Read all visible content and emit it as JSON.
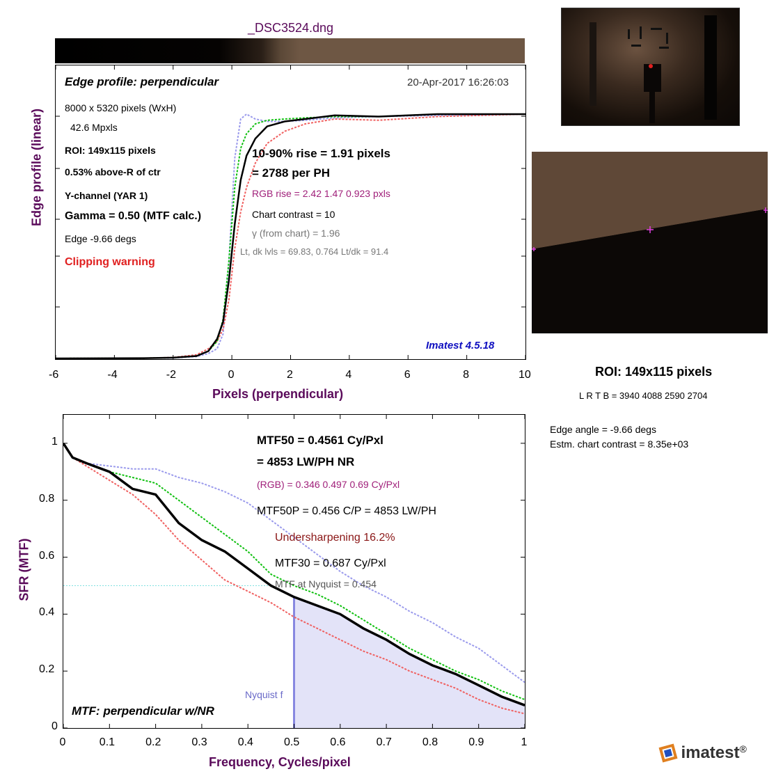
{
  "title": "_DSC3524.dng",
  "edge_panel": {
    "heading": "Edge profile: perpendicular",
    "timestamp": "20-Apr-2017 16:26:03",
    "dims": "8000 x 5320 pixels (WxH)",
    "mpxls": "42.6 Mpxls",
    "roi": "ROI:  149x115 pixels",
    "above": "0.53% above-R of ctr",
    "channel": "Y-channel  (YAR 1)",
    "gamma": "Gamma = 0.50 (MTF calc.)",
    "edge": "Edge  -9.66 degs",
    "clipping": "Clipping warning",
    "rise": "10-90% rise = 1.91 pixels",
    "per_ph": "=   2788 per PH",
    "rgb_rise": "RGB rise =   2.42    1.47   0.923 pxls",
    "contrast": "Chart contrast = 10",
    "gamma_chart": "γ (from chart) =  1.96",
    "levels": "Lt, dk lvls =  69.83,   0.764   Lt/dk =   91.4",
    "version": "Imatest 4.5.18",
    "ylabel": "Edge profile (linear)",
    "xlabel": "Pixels (perpendicular)",
    "xticks": [
      "-6",
      "-4",
      "-2",
      "0",
      "2",
      "4",
      "6",
      "8",
      "10"
    ]
  },
  "mtf_panel": {
    "mtf50": "MTF50 = 0.4561 Cy/Pxl",
    "lwph": "= 4853 LW/PH  NR",
    "rgb": "(RGB) = 0.346  0.497  0.69 Cy/Pxl",
    "mtf50p": "MTF50P = 0.456 C/P = 4853 LW/PH",
    "under": "Undersharpening 16.2%",
    "mtf30": "MTF30 = 0.687 Cy/Pxl",
    "nyq_mtf": "MTF at Nyquist = 0.454",
    "nyquist_label": "Nyquist f",
    "footer": "MTF: perpendicular w/NR",
    "ylabel": "SFR (MTF)",
    "xlabel": "Frequency, Cycles/pixel",
    "xticks": [
      "0",
      "0.1",
      "0.2",
      "0.3",
      "0.4",
      "0.5",
      "0.6",
      "0.7",
      "0.8",
      "0.9",
      "1"
    ],
    "yticks": [
      "0",
      "0.2",
      "0.4",
      "0.6",
      "0.8",
      "1"
    ]
  },
  "right_info": {
    "roi_title": "ROI:  149x115 pixels",
    "lrtb": "L R  T B = 3940 4088  2590 2704",
    "angle": "Edge angle = -9.66 degs",
    "estm": "Estm. chart contrast = 8.35e+03"
  },
  "logo": {
    "text": "imatest",
    "mark": "®"
  },
  "colors": {
    "title": "#5a0a5a",
    "red": "#f06060",
    "green": "#10c010",
    "blue": "#9a9aec",
    "clip": "#e02020",
    "version": "#1010c0",
    "magenta": "#a0207a"
  },
  "chart_data": [
    {
      "type": "line",
      "xlabel": "Pixels (perpendicular)",
      "ylabel": "Edge profile (linear)",
      "xlim": [
        -6,
        10
      ],
      "series": [
        {
          "name": "Y",
          "x": [
            -6,
            -3,
            -2,
            -1.2,
            -0.8,
            -0.5,
            -0.3,
            -0.1,
            0.1,
            0.3,
            0.5,
            0.8,
            1.2,
            1.8,
            2.5,
            3.5,
            5,
            7,
            10
          ],
          "y": [
            0.0,
            0.001,
            0.003,
            0.01,
            0.03,
            0.08,
            0.15,
            0.32,
            0.55,
            0.73,
            0.83,
            0.9,
            0.95,
            0.97,
            0.98,
            0.995,
            0.99,
            1.0,
            1.0
          ]
        },
        {
          "name": "R",
          "x": [
            -6,
            -3,
            -2,
            -1.2,
            -0.8,
            -0.5,
            -0.3,
            -0.1,
            0.1,
            0.3,
            0.5,
            0.8,
            1.2,
            1.8,
            2.5,
            3.5,
            5,
            7,
            10
          ],
          "y": [
            0.0,
            0.001,
            0.004,
            0.015,
            0.04,
            0.07,
            0.12,
            0.24,
            0.45,
            0.6,
            0.7,
            0.8,
            0.88,
            0.93,
            0.96,
            0.98,
            0.975,
            0.99,
            1.0
          ]
        },
        {
          "name": "G",
          "x": [
            -6,
            -3,
            -2,
            -1.2,
            -0.8,
            -0.5,
            -0.3,
            -0.1,
            0.1,
            0.3,
            0.5,
            0.8,
            1.2,
            1.8,
            2.5,
            3.5,
            5,
            7,
            10
          ],
          "y": [
            0.0,
            0.001,
            0.003,
            0.01,
            0.03,
            0.07,
            0.16,
            0.4,
            0.7,
            0.86,
            0.92,
            0.96,
            0.975,
            0.98,
            0.985,
            0.99,
            0.99,
            1.0,
            1.0
          ]
        },
        {
          "name": "B",
          "x": [
            -6,
            -3,
            -2,
            -1.2,
            -0.8,
            -0.5,
            -0.3,
            -0.1,
            0.1,
            0.3,
            0.5,
            0.8,
            1.2,
            1.8,
            2.5,
            3.5,
            5,
            7,
            10
          ],
          "y": [
            0.0,
            0.001,
            0.002,
            0.008,
            0.02,
            0.04,
            0.1,
            0.4,
            0.82,
            0.98,
            1.0,
            0.98,
            0.97,
            0.97,
            0.975,
            0.985,
            0.99,
            0.995,
            1.0
          ]
        }
      ]
    },
    {
      "type": "line",
      "xlabel": "Frequency, Cycles/pixel",
      "ylabel": "SFR (MTF)",
      "xlim": [
        0,
        1
      ],
      "ylim": [
        0,
        1.0
      ],
      "series": [
        {
          "name": "Y",
          "x": [
            0,
            0.02,
            0.05,
            0.1,
            0.15,
            0.2,
            0.25,
            0.3,
            0.35,
            0.4,
            0.45,
            0.5,
            0.55,
            0.6,
            0.65,
            0.7,
            0.75,
            0.8,
            0.85,
            0.9,
            0.95,
            1.0
          ],
          "y": [
            1.0,
            0.95,
            0.93,
            0.9,
            0.84,
            0.82,
            0.72,
            0.66,
            0.62,
            0.56,
            0.5,
            0.46,
            0.43,
            0.4,
            0.35,
            0.31,
            0.26,
            0.22,
            0.19,
            0.15,
            0.11,
            0.08
          ]
        },
        {
          "name": "R",
          "x": [
            0,
            0.02,
            0.05,
            0.1,
            0.15,
            0.2,
            0.25,
            0.3,
            0.35,
            0.4,
            0.45,
            0.5,
            0.55,
            0.6,
            0.65,
            0.7,
            0.75,
            0.8,
            0.85,
            0.9,
            0.95,
            1.0
          ],
          "y": [
            1.0,
            0.95,
            0.92,
            0.87,
            0.82,
            0.75,
            0.66,
            0.59,
            0.52,
            0.48,
            0.44,
            0.39,
            0.35,
            0.31,
            0.27,
            0.24,
            0.2,
            0.17,
            0.14,
            0.1,
            0.07,
            0.05
          ]
        },
        {
          "name": "G",
          "x": [
            0,
            0.02,
            0.05,
            0.1,
            0.15,
            0.2,
            0.25,
            0.3,
            0.35,
            0.4,
            0.45,
            0.5,
            0.55,
            0.6,
            0.65,
            0.7,
            0.75,
            0.8,
            0.85,
            0.9,
            0.95,
            1.0
          ],
          "y": [
            1.0,
            0.95,
            0.93,
            0.9,
            0.88,
            0.86,
            0.8,
            0.74,
            0.68,
            0.62,
            0.54,
            0.5,
            0.47,
            0.43,
            0.38,
            0.33,
            0.28,
            0.24,
            0.2,
            0.17,
            0.13,
            0.1
          ]
        },
        {
          "name": "B",
          "x": [
            0,
            0.02,
            0.05,
            0.1,
            0.15,
            0.2,
            0.25,
            0.3,
            0.35,
            0.4,
            0.45,
            0.5,
            0.55,
            0.6,
            0.65,
            0.7,
            0.75,
            0.8,
            0.85,
            0.9,
            0.95,
            1.0
          ],
          "y": [
            1.0,
            0.95,
            0.93,
            0.92,
            0.91,
            0.91,
            0.88,
            0.86,
            0.83,
            0.79,
            0.73,
            0.67,
            0.61,
            0.55,
            0.5,
            0.46,
            0.41,
            0.37,
            0.32,
            0.28,
            0.22,
            0.16
          ]
        }
      ],
      "annotations": {
        "nyquist_x": 0.5,
        "mtf50_level": 0.5
      }
    }
  ]
}
